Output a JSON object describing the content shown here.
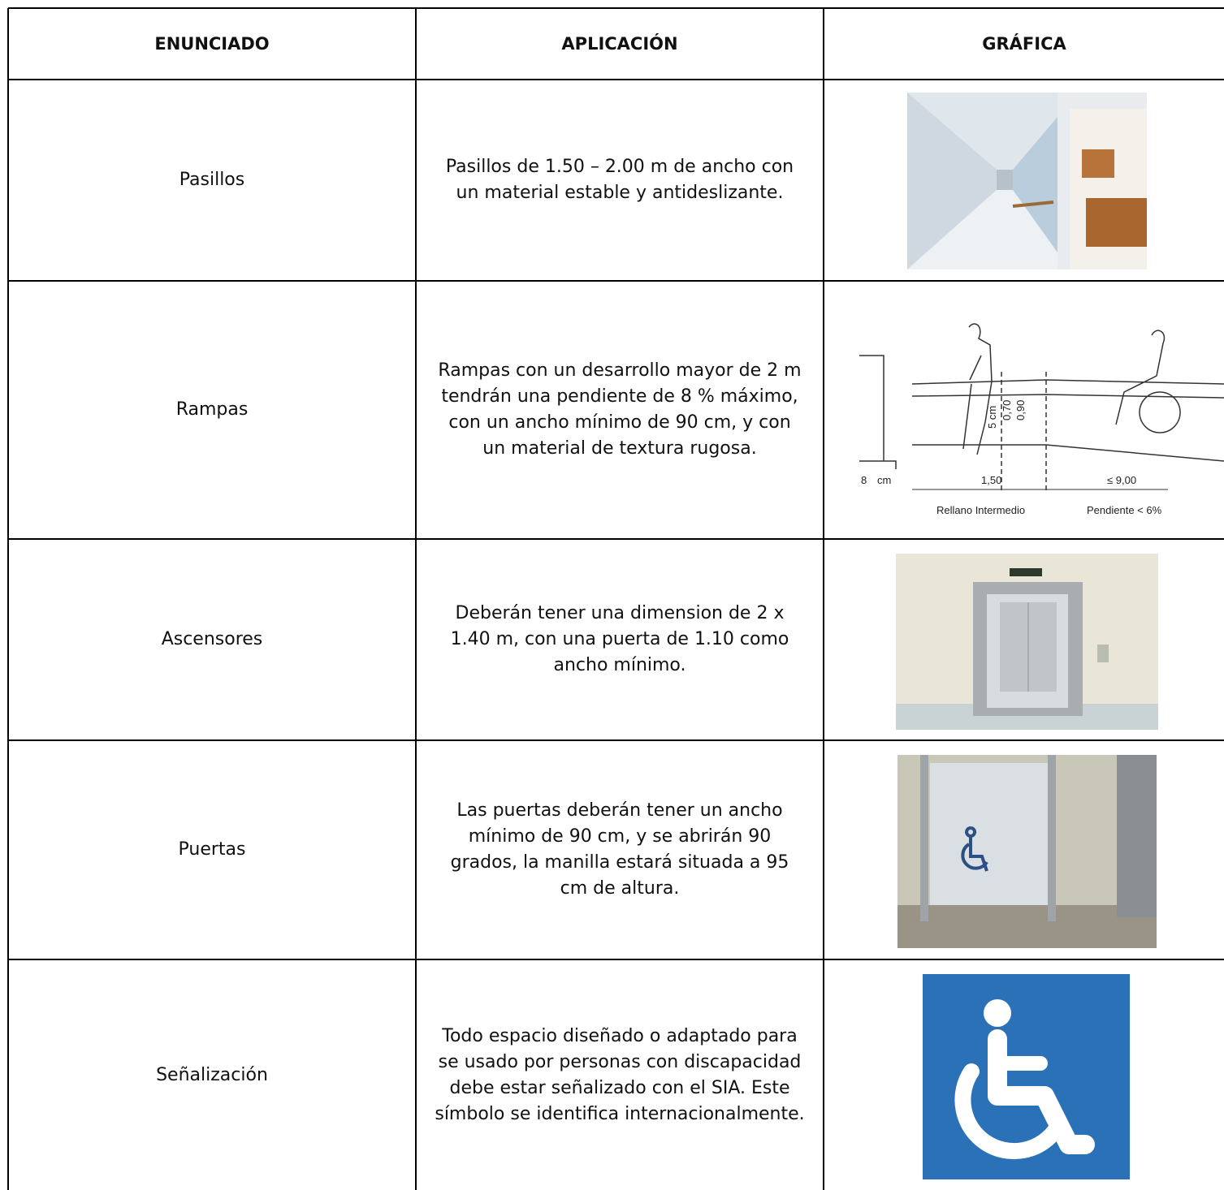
{
  "table": {
    "header": [
      "ENUNCIADO",
      "APLICACIÓN",
      "GRÁFICA"
    ],
    "rows": [
      [
        "Pasillos",
        "Pasillos de 1.50 – 2.00 m de ancho con un material estable y antideslizante."
      ],
      [
        "Rampas",
        "Rampas con un desarrollo mayor de 2 m tendrán una pendiente de 8 % máximo, con un ancho mínimo de 90 cm, y con un material de textura rugosa."
      ],
      [
        "Ascensores",
        "Deberán tener una dimension de 2 x 1.40 m, con una puerta de 1.10 como ancho mínimo."
      ],
      [
        "Puertas",
        "Las puertas deberán tener un ancho mínimo de 90 cm, y se abrirán 90 grados, la manilla estará situada a 95 cm de altura."
      ],
      [
        "Señalización",
        "Todo espacio diseñado o adaptado para se usado por personas con discapacidad debe estar señalizado con el SIA. Este símbolo se identifica internacionalmente."
      ]
    ]
  },
  "ramp_figure": {
    "labels": [
      "8",
      "cm",
      "5 cm",
      "0,70",
      "0,90",
      "1,50",
      "≤ 9,00",
      "Rellano Intermedio",
      "Pendiente < 6%"
    ]
  }
}
